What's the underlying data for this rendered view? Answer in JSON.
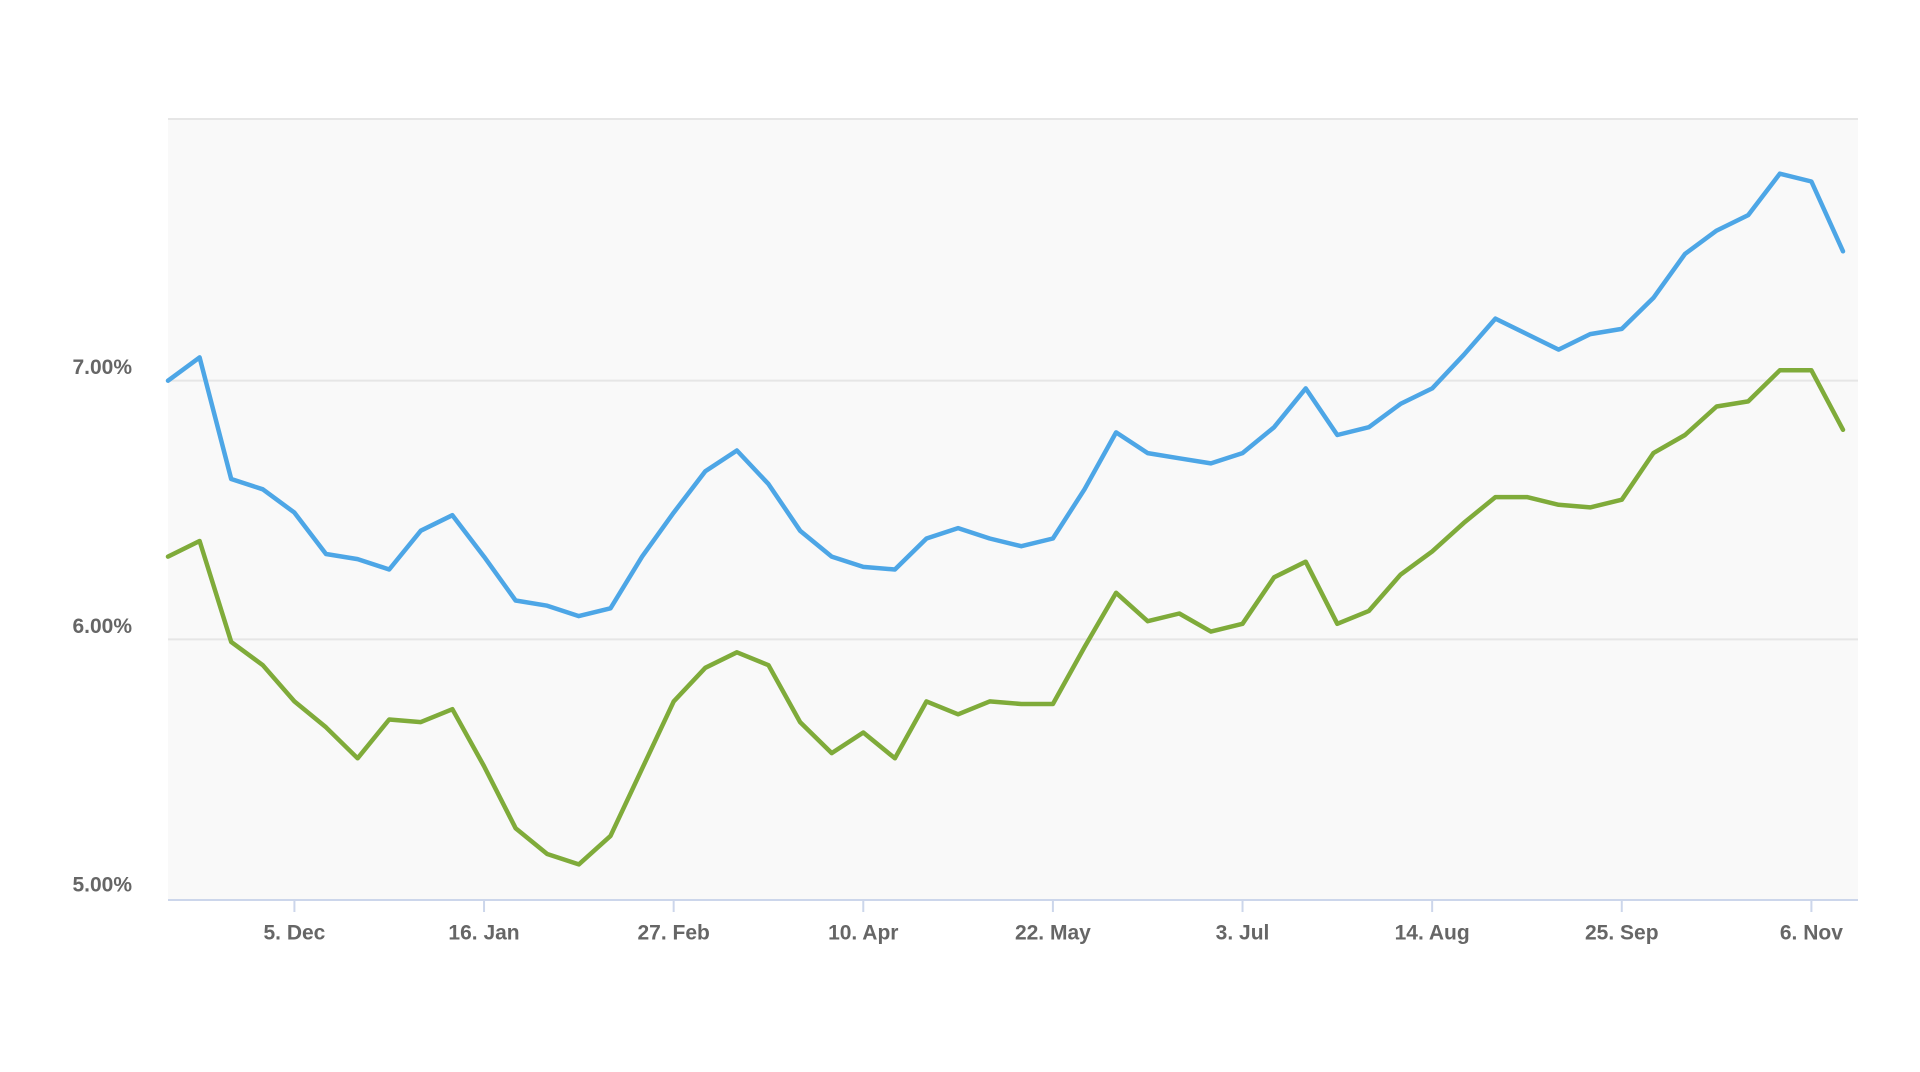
{
  "chart_data": {
    "type": "line",
    "categories": [
      null,
      null,
      null,
      null,
      "5. Dec",
      null,
      null,
      null,
      null,
      null,
      "16. Jan",
      null,
      null,
      null,
      null,
      null,
      "27. Feb",
      null,
      null,
      null,
      null,
      null,
      "10. Apr",
      null,
      null,
      null,
      null,
      null,
      "22. May",
      null,
      null,
      null,
      null,
      null,
      "3. Jul",
      null,
      null,
      null,
      null,
      null,
      "14. Aug",
      null,
      null,
      null,
      null,
      null,
      "25. Sep",
      null,
      null,
      null,
      null,
      null,
      "6. Nov",
      null
    ],
    "series": [
      {
        "color": "#4da6e6",
        "values": [
          7.0,
          7.09,
          6.62,
          6.58,
          6.49,
          6.33,
          6.31,
          6.27,
          6.42,
          6.48,
          6.32,
          6.15,
          6.13,
          6.09,
          6.12,
          6.32,
          6.49,
          6.65,
          6.73,
          6.6,
          6.42,
          6.32,
          6.28,
          6.27,
          6.39,
          6.43,
          6.39,
          6.36,
          6.39,
          6.58,
          6.8,
          6.72,
          6.7,
          6.68,
          6.72,
          6.82,
          6.97,
          6.79,
          6.82,
          6.91,
          6.97,
          7.1,
          7.24,
          7.18,
          7.12,
          7.18,
          7.2,
          7.32,
          7.49,
          7.58,
          7.64,
          7.8,
          7.77,
          7.5
        ]
      },
      {
        "color": "#7fab3a",
        "values": [
          6.32,
          6.38,
          5.99,
          5.9,
          5.76,
          5.66,
          5.54,
          5.69,
          5.68,
          5.73,
          5.51,
          5.27,
          5.17,
          5.13,
          5.24,
          5.5,
          5.76,
          5.89,
          5.95,
          5.9,
          5.68,
          5.56,
          5.64,
          5.54,
          5.76,
          5.71,
          5.76,
          5.75,
          5.75,
          5.97,
          6.18,
          6.07,
          6.1,
          6.03,
          6.06,
          6.24,
          6.3,
          6.06,
          6.11,
          6.25,
          6.34,
          6.45,
          6.55,
          6.55,
          6.52,
          6.51,
          6.54,
          6.72,
          6.79,
          6.9,
          6.92,
          7.04,
          7.04,
          6.81
        ]
      }
    ],
    "ylim": [
      5,
      8
    ],
    "yticks": [
      {
        "value": 5,
        "label": "5.00%"
      },
      {
        "value": 6,
        "label": "6.00%"
      },
      {
        "value": 7,
        "label": "7.00%"
      }
    ],
    "grid": true
  }
}
